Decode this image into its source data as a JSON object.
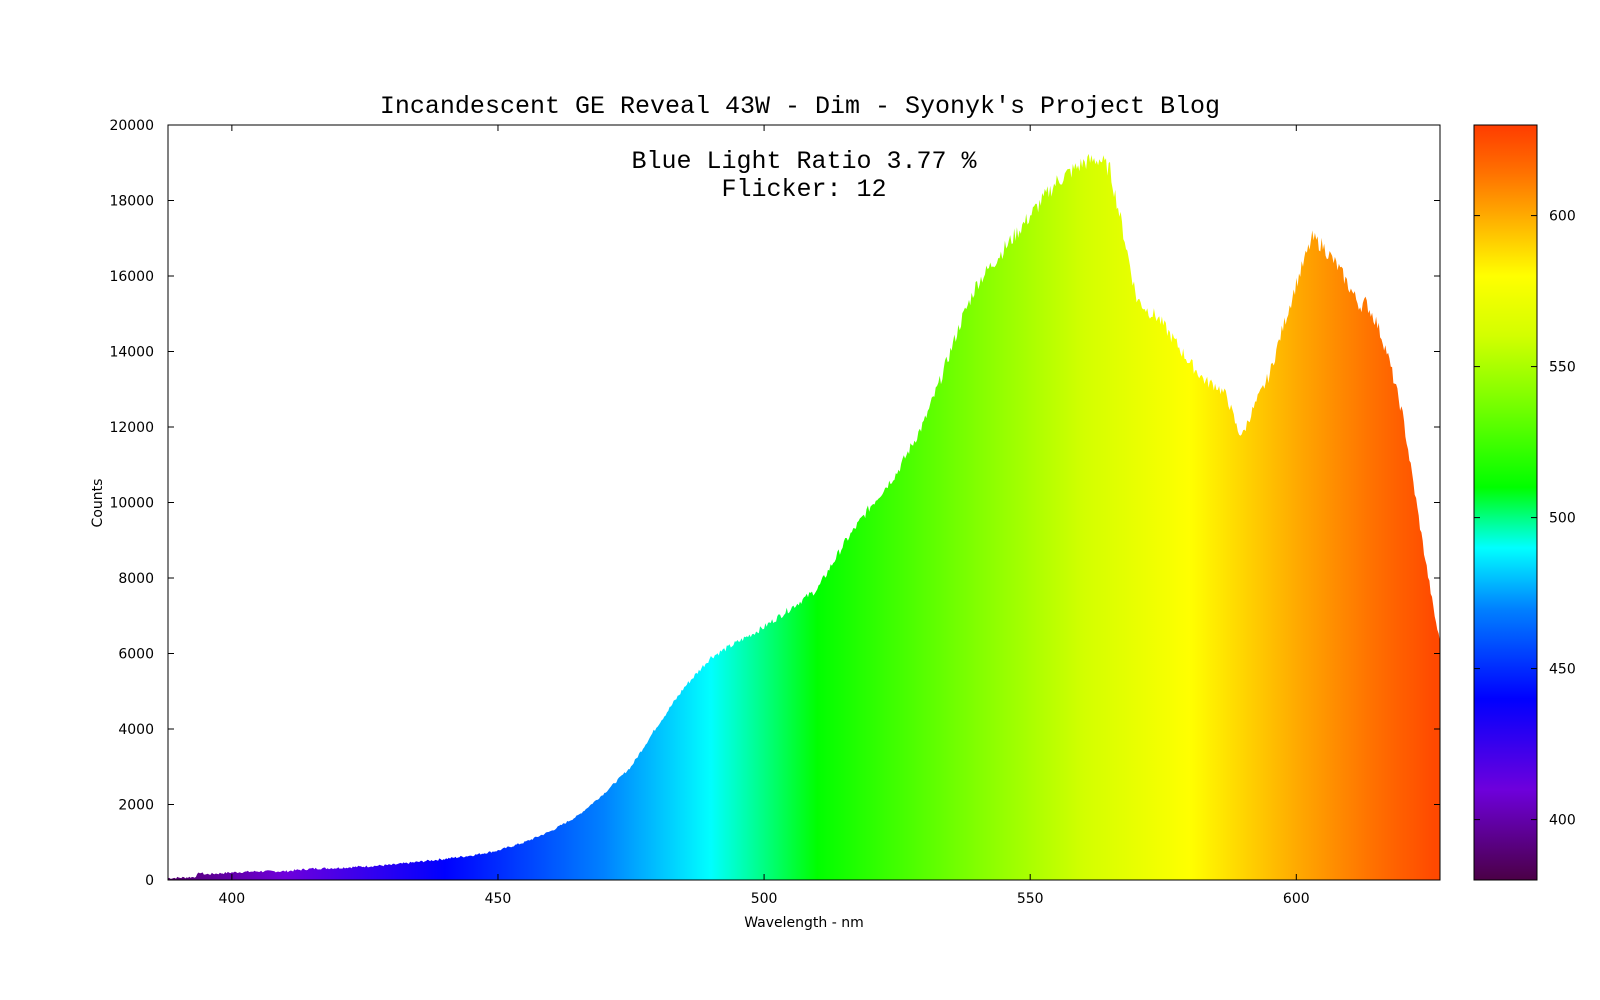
{
  "chart_data": {
    "type": "area",
    "title": "Incandescent GE Reveal 43W - Dim - Syonyk's Project Blog",
    "annotations": [
      "Blue Light Ratio 3.77 %",
      "Flicker: 12"
    ],
    "xlabel": "Wavelength - nm",
    "ylabel": "Counts",
    "xlim": [
      388,
      627
    ],
    "ylim": [
      0,
      20000
    ],
    "x_ticks": [
      400,
      450,
      500,
      550,
      600
    ],
    "y_ticks": [
      0,
      2000,
      4000,
      6000,
      8000,
      10000,
      12000,
      14000,
      16000,
      18000,
      20000
    ],
    "colorbar": {
      "range": [
        380,
        630
      ],
      "ticks": [
        400,
        450,
        500,
        550,
        600
      ]
    },
    "grid": false,
    "series": [
      {
        "x": [
          388,
          390,
          393,
          394,
          395,
          400,
          405,
          410,
          415,
          420,
          425,
          430,
          435,
          440,
          445,
          450,
          455,
          460,
          465,
          470,
          475,
          480,
          485,
          490,
          495,
          500,
          505,
          510,
          515,
          520,
          525,
          530,
          533,
          537,
          540,
          545,
          550,
          555,
          560,
          563,
          565,
          567,
          570,
          572,
          574,
          576,
          580,
          583,
          585,
          587,
          589,
          590,
          591,
          593,
          595,
          597,
          600,
          602,
          603,
          605,
          608,
          610,
          612,
          613,
          615,
          617,
          620,
          622,
          624,
          626,
          627
        ],
        "y": [
          50,
          60,
          80,
          200,
          150,
          200,
          230,
          230,
          300,
          320,
          360,
          400,
          480,
          560,
          650,
          780,
          1000,
          1300,
          1700,
          2300,
          3000,
          4100,
          5100,
          5900,
          6300,
          6700,
          7200,
          7700,
          8900,
          9900,
          10800,
          12100,
          13200,
          14800,
          15800,
          16700,
          17600,
          18500,
          19000,
          19100,
          18800,
          17500,
          15400,
          15100,
          14900,
          14500,
          13700,
          13200,
          13100,
          12800,
          11900,
          11800,
          12200,
          12800,
          13400,
          14400,
          15800,
          16600,
          17000,
          16800,
          16200,
          15700,
          15200,
          15300,
          14800,
          14000,
          12300,
          10500,
          8700,
          7000,
          6300
        ]
      }
    ]
  }
}
